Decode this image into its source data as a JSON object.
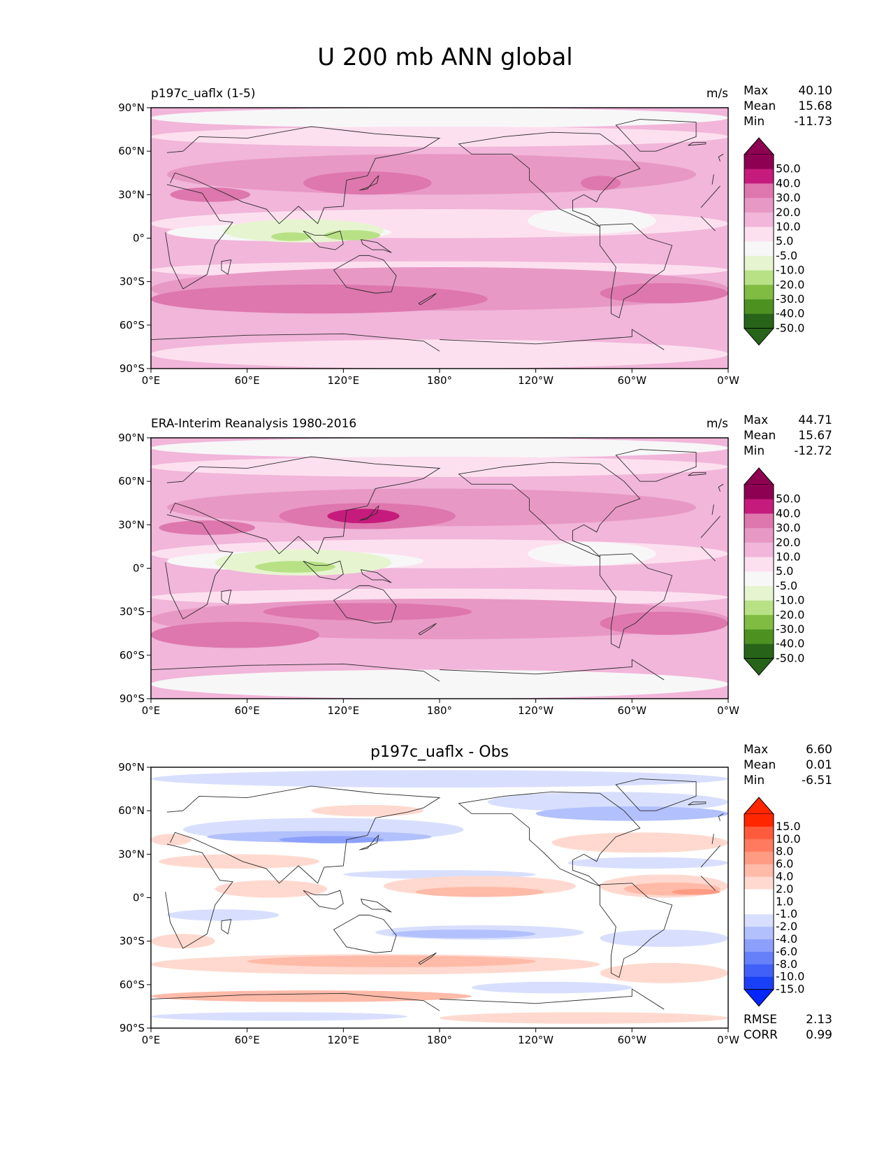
{
  "figure": {
    "title": "U 200 mb ANN global"
  },
  "chart_data": [
    {
      "type": "heatmap",
      "title": "p197c_uaflx (1-5)",
      "units": "m/s",
      "stats": [
        {
          "label": "Max",
          "value": "40.10"
        },
        {
          "label": "Mean",
          "value": "15.68"
        },
        {
          "label": "Min",
          "value": "-11.73"
        }
      ],
      "xticks": [
        "0°E",
        "60°E",
        "120°E",
        "180°",
        "120°W",
        "60°W",
        "0°W"
      ],
      "yticks": [
        "90°N",
        "60°N",
        "30°N",
        "0°",
        "30°S",
        "60°S",
        "90°S"
      ],
      "xlim": [
        0,
        360
      ],
      "ylim": [
        -90,
        90
      ],
      "colorbar": {
        "labels": [
          "50.0",
          "40.0",
          "30.0",
          "20.0",
          "10.0",
          "5.0",
          "-5.0",
          "-10.0",
          "-20.0",
          "-30.0",
          "-40.0",
          "-50.0"
        ],
        "colors": [
          "#8e0152",
          "#c51b7d",
          "#de77ae",
          "#e898c5",
          "#f1b6da",
          "#fde0ef",
          "#f7f7f7",
          "#e6f5d0",
          "#b8e186",
          "#7fbc41",
          "#4d9221",
          "#276419"
        ],
        "over": "#8e0152",
        "under": "#276419"
      },
      "background": "#f1b6da",
      "features": [
        {
          "lon": 0,
          "lat": 83,
          "w": 360,
          "h": 14,
          "color": "#f7f7f7"
        },
        {
          "lon": 0,
          "lat": 70,
          "w": 360,
          "h": 14,
          "color": "#fde0ef"
        },
        {
          "lon": 10,
          "lat": 44,
          "w": 330,
          "h": 28,
          "color": "#e898c5"
        },
        {
          "lon": 12,
          "lat": 30,
          "w": 50,
          "h": 10,
          "color": "#de77ae"
        },
        {
          "lon": 95,
          "lat": 38,
          "w": 80,
          "h": 16,
          "color": "#de77ae"
        },
        {
          "lon": 268,
          "lat": 38,
          "w": 25,
          "h": 10,
          "color": "#de77ae"
        },
        {
          "lon": 0,
          "lat": 10,
          "w": 360,
          "h": 20,
          "color": "#fde0ef"
        },
        {
          "lon": 10,
          "lat": 4,
          "w": 140,
          "h": 12,
          "color": "#f7f7f7"
        },
        {
          "lon": 235,
          "lat": 12,
          "w": 80,
          "h": 18,
          "color": "#f7f7f7"
        },
        {
          "lon": 45,
          "lat": 5,
          "w": 100,
          "h": 16,
          "color": "#e6f5d0"
        },
        {
          "lon": 75,
          "lat": 1,
          "w": 25,
          "h": 6,
          "color": "#b8e186"
        },
        {
          "lon": 108,
          "lat": 2,
          "w": 35,
          "h": 7,
          "color": "#b8e186"
        },
        {
          "lon": 0,
          "lat": -22,
          "w": 360,
          "h": 12,
          "color": "#fde0ef"
        },
        {
          "lon": 0,
          "lat": -35,
          "w": 360,
          "h": 30,
          "color": "#e898c5"
        },
        {
          "lon": 0,
          "lat": -42,
          "w": 210,
          "h": 20,
          "color": "#de77ae"
        },
        {
          "lon": 280,
          "lat": -38,
          "w": 80,
          "h": 14,
          "color": "#de77ae"
        },
        {
          "lon": 0,
          "lat": -66,
          "w": 360,
          "h": 10,
          "color": "#f1b6da"
        },
        {
          "lon": 0,
          "lat": -80,
          "w": 360,
          "h": 20,
          "color": "#fde0ef"
        }
      ]
    },
    {
      "type": "heatmap",
      "title": "ERA-Interim Reanalysis 1980-2016",
      "units": "m/s",
      "stats": [
        {
          "label": "Max",
          "value": "44.71"
        },
        {
          "label": "Mean",
          "value": "15.67"
        },
        {
          "label": "Min",
          "value": "-12.72"
        }
      ],
      "xticks": [
        "0°E",
        "60°E",
        "120°E",
        "180°",
        "120°W",
        "60°W",
        "0°W"
      ],
      "yticks": [
        "90°N",
        "60°N",
        "30°N",
        "0°",
        "30°S",
        "60°S",
        "90°S"
      ],
      "xlim": [
        0,
        360
      ],
      "ylim": [
        -90,
        90
      ],
      "colorbar": {
        "labels": [
          "50.0",
          "40.0",
          "30.0",
          "20.0",
          "10.0",
          "5.0",
          "-5.0",
          "-10.0",
          "-20.0",
          "-30.0",
          "-40.0",
          "-50.0"
        ],
        "colors": [
          "#8e0152",
          "#c51b7d",
          "#de77ae",
          "#e898c5",
          "#f1b6da",
          "#fde0ef",
          "#f7f7f7",
          "#e6f5d0",
          "#b8e186",
          "#7fbc41",
          "#4d9221",
          "#276419"
        ],
        "over": "#8e0152",
        "under": "#276419"
      },
      "background": "#f1b6da",
      "features": [
        {
          "lon": 0,
          "lat": 83,
          "w": 360,
          "h": 14,
          "color": "#f7f7f7"
        },
        {
          "lon": 0,
          "lat": 70,
          "w": 360,
          "h": 14,
          "color": "#fde0ef"
        },
        {
          "lon": 10,
          "lat": 42,
          "w": 330,
          "h": 26,
          "color": "#e898c5"
        },
        {
          "lon": 80,
          "lat": 36,
          "w": 110,
          "h": 18,
          "color": "#de77ae"
        },
        {
          "lon": 110,
          "lat": 36,
          "w": 45,
          "h": 10,
          "color": "#c51b7d"
        },
        {
          "lon": 5,
          "lat": 28,
          "w": 60,
          "h": 10,
          "color": "#de77ae"
        },
        {
          "lon": 0,
          "lat": 10,
          "w": 360,
          "h": 20,
          "color": "#fde0ef"
        },
        {
          "lon": 10,
          "lat": 5,
          "w": 160,
          "h": 14,
          "color": "#f7f7f7"
        },
        {
          "lon": 235,
          "lat": 10,
          "w": 80,
          "h": 16,
          "color": "#f7f7f7"
        },
        {
          "lon": 40,
          "lat": 4,
          "w": 110,
          "h": 18,
          "color": "#e6f5d0"
        },
        {
          "lon": 65,
          "lat": 1,
          "w": 50,
          "h": 8,
          "color": "#b8e186"
        },
        {
          "lon": 0,
          "lat": -20,
          "w": 360,
          "h": 12,
          "color": "#fde0ef"
        },
        {
          "lon": 0,
          "lat": -35,
          "w": 360,
          "h": 28,
          "color": "#e898c5"
        },
        {
          "lon": 70,
          "lat": -30,
          "w": 130,
          "h": 12,
          "color": "#de77ae"
        },
        {
          "lon": 0,
          "lat": -46,
          "w": 105,
          "h": 18,
          "color": "#de77ae"
        },
        {
          "lon": 280,
          "lat": -38,
          "w": 80,
          "h": 16,
          "color": "#de77ae"
        },
        {
          "lon": 0,
          "lat": -66,
          "w": 360,
          "h": 10,
          "color": "#f1b6da"
        },
        {
          "lon": 0,
          "lat": -80,
          "w": 360,
          "h": 20,
          "color": "#f7f7f7"
        }
      ]
    },
    {
      "type": "heatmap",
      "title": "p197c_uaflx - Obs",
      "units": "",
      "stats": [
        {
          "label": "Max",
          "value": "6.60"
        },
        {
          "label": "Mean",
          "value": "0.01"
        },
        {
          "label": "Min",
          "value": "-6.51"
        }
      ],
      "extra_stats": [
        {
          "label": "RMSE",
          "value": "2.13"
        },
        {
          "label": "CORR",
          "value": "0.99"
        }
      ],
      "xticks": [
        "0°E",
        "60°E",
        "120°E",
        "180°",
        "120°W",
        "60°W",
        "0°W"
      ],
      "yticks": [
        "90°N",
        "60°N",
        "30°N",
        "0°",
        "30°S",
        "60°S",
        "90°S"
      ],
      "xlim": [
        0,
        360
      ],
      "ylim": [
        -90,
        90
      ],
      "colorbar": {
        "labels": [
          "15.0",
          "10.0",
          "8.0",
          "6.0",
          "4.0",
          "2.0",
          "1.0",
          "-1.0",
          "-2.0",
          "-4.0",
          "-6.0",
          "-8.0",
          "-10.0",
          "-15.0"
        ],
        "colors": [
          "#ff2600",
          "#ff5a3c",
          "#ff7a5e",
          "#ff9a83",
          "#ffbaa8",
          "#ffd9cf",
          "#ffffff",
          "#ffffff",
          "#d8dffe",
          "#b2c0fd",
          "#8ca0fb",
          "#6680fa",
          "#4060f8",
          "#1a40f7"
        ],
        "over": "#ff2600",
        "under": "#0026ff"
      },
      "background": "#ffffff",
      "features": [
        {
          "lon": 0,
          "lat": 82,
          "w": 360,
          "h": 12,
          "color": "#d8dffe"
        },
        {
          "lon": 210,
          "lat": 66,
          "w": 150,
          "h": 14,
          "color": "#d8dffe"
        },
        {
          "lon": 240,
          "lat": 58,
          "w": 120,
          "h": 10,
          "color": "#b2c0fd"
        },
        {
          "lon": 20,
          "lat": 47,
          "w": 175,
          "h": 16,
          "color": "#d8dffe"
        },
        {
          "lon": 35,
          "lat": 42,
          "w": 140,
          "h": 8,
          "color": "#b2c0fd"
        },
        {
          "lon": 80,
          "lat": 40,
          "w": 65,
          "h": 5,
          "color": "#8ca0fb"
        },
        {
          "lon": 0,
          "lat": 40,
          "w": 25,
          "h": 8,
          "color": "#ffd9cf"
        },
        {
          "lon": 100,
          "lat": 60,
          "w": 70,
          "h": 8,
          "color": "#ffd9cf"
        },
        {
          "lon": 250,
          "lat": 38,
          "w": 110,
          "h": 14,
          "color": "#ffd9cf"
        },
        {
          "lon": 5,
          "lat": 25,
          "w": 100,
          "h": 10,
          "color": "#ffd9cf"
        },
        {
          "lon": 260,
          "lat": 24,
          "w": 100,
          "h": 8,
          "color": "#d8dffe"
        },
        {
          "lon": 120,
          "lat": 16,
          "w": 120,
          "h": 6,
          "color": "#d8dffe"
        },
        {
          "lon": 40,
          "lat": 6,
          "w": 70,
          "h": 12,
          "color": "#ffd9cf"
        },
        {
          "lon": 145,
          "lat": 8,
          "w": 120,
          "h": 14,
          "color": "#ffd9cf"
        },
        {
          "lon": 165,
          "lat": 4,
          "w": 80,
          "h": 7,
          "color": "#ffbaa8"
        },
        {
          "lon": 280,
          "lat": 8,
          "w": 80,
          "h": 16,
          "color": "#ffd9cf"
        },
        {
          "lon": 295,
          "lat": 6,
          "w": 60,
          "h": 9,
          "color": "#ffbaa8"
        },
        {
          "lon": 325,
          "lat": 4,
          "w": 30,
          "h": 4,
          "color": "#ff9a83"
        },
        {
          "lon": 10,
          "lat": -12,
          "w": 70,
          "h": 8,
          "color": "#d8dffe"
        },
        {
          "lon": 140,
          "lat": -24,
          "w": 130,
          "h": 10,
          "color": "#d8dffe"
        },
        {
          "lon": 150,
          "lat": -25,
          "w": 90,
          "h": 6,
          "color": "#b2c0fd"
        },
        {
          "lon": 280,
          "lat": -28,
          "w": 80,
          "h": 12,
          "color": "#d8dffe"
        },
        {
          "lon": 0,
          "lat": -30,
          "w": 40,
          "h": 10,
          "color": "#ffd9cf"
        },
        {
          "lon": 0,
          "lat": -46,
          "w": 280,
          "h": 14,
          "color": "#ffd9cf"
        },
        {
          "lon": 60,
          "lat": -44,
          "w": 180,
          "h": 8,
          "color": "#ffbaa8"
        },
        {
          "lon": 280,
          "lat": -52,
          "w": 80,
          "h": 14,
          "color": "#ffd9cf"
        },
        {
          "lon": 0,
          "lat": -68,
          "w": 200,
          "h": 8,
          "color": "#ffbaa8"
        },
        {
          "lon": 200,
          "lat": -62,
          "w": 100,
          "h": 8,
          "color": "#d8dffe"
        },
        {
          "lon": 0,
          "lat": -82,
          "w": 160,
          "h": 6,
          "color": "#d8dffe"
        },
        {
          "lon": 180,
          "lat": -83,
          "w": 180,
          "h": 8,
          "color": "#ffd9cf"
        }
      ]
    }
  ]
}
